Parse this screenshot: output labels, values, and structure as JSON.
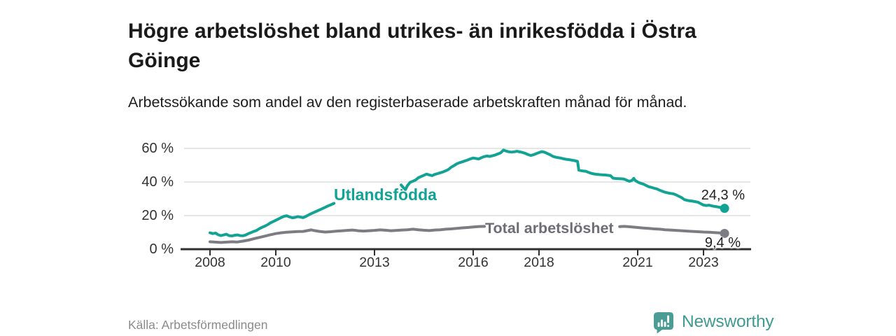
{
  "header": {
    "title": "Högre arbetslöshet bland utrikes- än inrikesfödda i Östra Göinge",
    "subtitle": "Arbetssökande som andel av den registerbaserade arbetskraften månad för månad."
  },
  "footer": {
    "source": "Källa: Arbetsförmedlingen",
    "brand_name": "Newsworthy",
    "brand_icon": "newsworthy-barchart-bubble-icon"
  },
  "colors": {
    "accent_teal": "#13a394",
    "line_gray": "#7c7c84",
    "gray_label": "#6d6d75",
    "axis": "#2f2f2f",
    "gridline": "#d8d8d8",
    "tick_text": "#333333",
    "brand_teal": "#4a9c94"
  },
  "chart_data": {
    "type": "line",
    "title": "Högre arbetslöshet bland utrikes- än inrikesfödda i Östra Göinge",
    "subtitle": "Arbetssökande som andel av den registerbaserade arbetskraften månad för månad.",
    "unit": "%",
    "grid": "horizontal-only",
    "legend_position": "inline-on-lines",
    "xlim": [
      2008,
      2023.64
    ],
    "ylim": [
      0,
      62
    ],
    "x_tick_years": [
      2008,
      2010,
      2013,
      2016,
      2018,
      2021,
      2023
    ],
    "x_tick_labels": [
      "2008",
      "2010",
      "2013",
      "2016",
      "2018",
      "2021",
      "2023"
    ],
    "y_ticks": [
      0,
      20,
      40,
      60
    ],
    "y_tick_labels": [
      "0 %",
      "20 %",
      "40 %",
      "60 %"
    ],
    "series": [
      {
        "name": "Utlandsfödda",
        "color": "#13a394",
        "end_value": 24.3,
        "end_label": "24,3 %",
        "segments": [
          [
            [
              2008.0,
              9.8
            ],
            [
              2008.08,
              9.3
            ],
            [
              2008.17,
              9.6
            ],
            [
              2008.25,
              8.6
            ],
            [
              2008.33,
              8.1
            ],
            [
              2008.42,
              8.5
            ],
            [
              2008.5,
              8.9
            ],
            [
              2008.58,
              8.1
            ],
            [
              2008.67,
              7.9
            ],
            [
              2008.75,
              8.3
            ],
            [
              2008.83,
              8.5
            ],
            [
              2008.92,
              8.1
            ],
            [
              2009.0,
              8.0
            ],
            [
              2009.08,
              8.4
            ],
            [
              2009.17,
              9.3
            ],
            [
              2009.25,
              9.9
            ],
            [
              2009.33,
              10.6
            ],
            [
              2009.42,
              11.2
            ],
            [
              2009.5,
              12.2
            ],
            [
              2009.58,
              13.0
            ],
            [
              2009.67,
              13.8
            ],
            [
              2009.75,
              14.6
            ],
            [
              2009.83,
              15.6
            ],
            [
              2009.92,
              16.4
            ],
            [
              2010.0,
              17.2
            ],
            [
              2010.08,
              18.0
            ],
            [
              2010.17,
              18.9
            ],
            [
              2010.25,
              19.6
            ],
            [
              2010.33,
              19.9
            ],
            [
              2010.42,
              19.2
            ],
            [
              2010.5,
              18.7
            ],
            [
              2010.58,
              18.9
            ],
            [
              2010.67,
              19.4
            ],
            [
              2010.75,
              19.1
            ],
            [
              2010.83,
              18.8
            ],
            [
              2010.92,
              19.6
            ],
            [
              2011.0,
              20.4
            ],
            [
              2011.08,
              21.2
            ],
            [
              2011.17,
              22.0
            ],
            [
              2011.25,
              22.7
            ],
            [
              2011.33,
              23.4
            ],
            [
              2011.42,
              24.2
            ],
            [
              2011.5,
              24.9
            ],
            [
              2011.58,
              25.7
            ],
            [
              2011.67,
              26.4
            ],
            [
              2011.77,
              27.3
            ]
          ],
          [
            [
              2013.81,
              38.2
            ],
            [
              2013.88,
              36.6
            ],
            [
              2013.94,
              35.5
            ],
            [
              2014.0,
              37.8
            ],
            [
              2014.08,
              39.8
            ],
            [
              2014.17,
              40.5
            ],
            [
              2014.25,
              41.2
            ],
            [
              2014.33,
              42.5
            ],
            [
              2014.42,
              43.3
            ],
            [
              2014.5,
              44.0
            ],
            [
              2014.58,
              44.7
            ],
            [
              2014.67,
              44.2
            ],
            [
              2014.75,
              43.8
            ],
            [
              2014.83,
              44.5
            ],
            [
              2014.92,
              45.0
            ],
            [
              2015.0,
              45.5
            ],
            [
              2015.08,
              46.0
            ],
            [
              2015.17,
              46.7
            ],
            [
              2015.25,
              47.5
            ],
            [
              2015.33,
              48.8
            ],
            [
              2015.42,
              49.8
            ],
            [
              2015.5,
              50.8
            ],
            [
              2015.58,
              51.5
            ],
            [
              2015.67,
              52.0
            ],
            [
              2015.75,
              52.6
            ],
            [
              2015.83,
              53.1
            ],
            [
              2015.92,
              53.8
            ],
            [
              2016.0,
              54.3
            ],
            [
              2016.08,
              54.0
            ],
            [
              2016.17,
              53.7
            ],
            [
              2016.25,
              54.5
            ],
            [
              2016.33,
              55.1
            ],
            [
              2016.42,
              55.5
            ],
            [
              2016.5,
              55.2
            ],
            [
              2016.58,
              55.6
            ],
            [
              2016.67,
              56.1
            ],
            [
              2016.75,
              56.7
            ],
            [
              2016.83,
              57.3
            ],
            [
              2016.92,
              59.0
            ],
            [
              2017.0,
              58.4
            ],
            [
              2017.08,
              58.0
            ],
            [
              2017.17,
              57.8
            ],
            [
              2017.25,
              58.0
            ],
            [
              2017.33,
              58.3
            ],
            [
              2017.42,
              57.9
            ],
            [
              2017.5,
              57.6
            ],
            [
              2017.58,
              57.1
            ],
            [
              2017.67,
              56.3
            ],
            [
              2017.75,
              55.8
            ],
            [
              2017.83,
              56.2
            ],
            [
              2017.92,
              56.9
            ],
            [
              2018.0,
              57.5
            ],
            [
              2018.08,
              58.1
            ],
            [
              2018.17,
              57.7
            ],
            [
              2018.25,
              57.0
            ],
            [
              2018.33,
              56.3
            ],
            [
              2018.42,
              55.3
            ],
            [
              2018.5,
              54.8
            ],
            [
              2018.58,
              54.5
            ],
            [
              2018.67,
              54.2
            ],
            [
              2018.75,
              53.8
            ],
            [
              2018.83,
              53.5
            ],
            [
              2018.92,
              53.3
            ],
            [
              2019.0,
              53.0
            ],
            [
              2019.08,
              52.7
            ],
            [
              2019.17,
              52.3
            ],
            [
              2019.21,
              47.0
            ],
            [
              2019.33,
              46.6
            ],
            [
              2019.42,
              46.4
            ],
            [
              2019.5,
              45.8
            ],
            [
              2019.58,
              45.2
            ],
            [
              2019.67,
              44.8
            ],
            [
              2019.75,
              44.6
            ],
            [
              2019.83,
              44.4
            ],
            [
              2019.92,
              44.3
            ],
            [
              2020.0,
              44.2
            ],
            [
              2020.08,
              44.0
            ],
            [
              2020.17,
              43.8
            ],
            [
              2020.25,
              42.3
            ],
            [
              2020.33,
              42.1
            ],
            [
              2020.42,
              42.0
            ],
            [
              2020.5,
              41.9
            ],
            [
              2020.58,
              41.8
            ],
            [
              2020.67,
              41.0
            ],
            [
              2020.75,
              40.4
            ],
            [
              2020.83,
              41.0
            ],
            [
              2020.88,
              42.2
            ],
            [
              2020.92,
              41.0
            ],
            [
              2021.0,
              40.0
            ],
            [
              2021.08,
              39.3
            ],
            [
              2021.17,
              38.8
            ],
            [
              2021.25,
              38.0
            ],
            [
              2021.33,
              37.2
            ],
            [
              2021.42,
              36.8
            ],
            [
              2021.5,
              36.3
            ],
            [
              2021.58,
              35.9
            ],
            [
              2021.67,
              35.1
            ],
            [
              2021.75,
              34.5
            ],
            [
              2021.83,
              33.9
            ],
            [
              2021.92,
              33.5
            ],
            [
              2022.0,
              33.2
            ],
            [
              2022.08,
              33.0
            ],
            [
              2022.17,
              32.3
            ],
            [
              2022.25,
              31.5
            ],
            [
              2022.33,
              30.8
            ],
            [
              2022.42,
              29.5
            ],
            [
              2022.5,
              29.1
            ],
            [
              2022.58,
              28.8
            ],
            [
              2022.67,
              28.6
            ],
            [
              2022.75,
              28.3
            ],
            [
              2022.83,
              28.0
            ],
            [
              2022.92,
              27.1
            ],
            [
              2023.0,
              26.3
            ],
            [
              2023.08,
              26.0
            ],
            [
              2023.17,
              26.2
            ],
            [
              2023.25,
              25.8
            ],
            [
              2023.33,
              25.5
            ],
            [
              2023.42,
              25.2
            ],
            [
              2023.5,
              24.9
            ],
            [
              2023.58,
              24.5
            ],
            [
              2023.64,
              24.3
            ]
          ]
        ]
      },
      {
        "name": "Total arbetslöshet",
        "color": "#7c7c84",
        "label_color": "#6d6d75",
        "end_value": 9.4,
        "end_label": "9,4 %",
        "segments": [
          [
            [
              2008.0,
              4.4
            ],
            [
              2008.17,
              4.2
            ],
            [
              2008.33,
              4.0
            ],
            [
              2008.5,
              4.2
            ],
            [
              2008.67,
              4.4
            ],
            [
              2008.83,
              4.3
            ],
            [
              2009.0,
              4.8
            ],
            [
              2009.17,
              5.4
            ],
            [
              2009.33,
              6.2
            ],
            [
              2009.5,
              7.0
            ],
            [
              2009.67,
              7.8
            ],
            [
              2009.83,
              8.6
            ],
            [
              2010.0,
              9.3
            ],
            [
              2010.17,
              9.8
            ],
            [
              2010.33,
              10.1
            ],
            [
              2010.5,
              10.3
            ],
            [
              2010.67,
              10.5
            ],
            [
              2010.83,
              10.6
            ],
            [
              2011.0,
              11.2
            ],
            [
              2011.08,
              11.5
            ],
            [
              2011.17,
              11.1
            ],
            [
              2011.33,
              10.6
            ],
            [
              2011.5,
              10.2
            ],
            [
              2011.67,
              10.4
            ],
            [
              2011.83,
              10.7
            ],
            [
              2012.0,
              10.9
            ],
            [
              2012.17,
              11.2
            ],
            [
              2012.33,
              11.4
            ],
            [
              2012.5,
              11.0
            ],
            [
              2012.67,
              10.8
            ],
            [
              2012.83,
              11.0
            ],
            [
              2013.0,
              11.2
            ],
            [
              2013.17,
              11.5
            ],
            [
              2013.33,
              11.3
            ],
            [
              2013.5,
              11.0
            ],
            [
              2013.67,
              11.2
            ],
            [
              2013.83,
              11.4
            ],
            [
              2014.0,
              11.6
            ],
            [
              2014.17,
              11.9
            ],
            [
              2014.33,
              11.6
            ],
            [
              2014.5,
              11.3
            ],
            [
              2014.67,
              11.1
            ],
            [
              2014.83,
              11.4
            ],
            [
              2015.0,
              11.6
            ],
            [
              2015.17,
              11.9
            ],
            [
              2015.33,
              12.1
            ],
            [
              2015.5,
              12.4
            ],
            [
              2015.67,
              12.7
            ],
            [
              2015.83,
              12.9
            ],
            [
              2016.0,
              13.2
            ],
            [
              2016.17,
              13.5
            ],
            [
              2016.34,
              13.6
            ]
          ],
          [
            [
              2020.45,
              13.4
            ],
            [
              2020.58,
              13.6
            ],
            [
              2020.67,
              13.5
            ],
            [
              2020.83,
              13.2
            ],
            [
              2021.0,
              12.9
            ],
            [
              2021.17,
              12.6
            ],
            [
              2021.33,
              12.4
            ],
            [
              2021.5,
              12.1
            ],
            [
              2021.67,
              11.9
            ],
            [
              2021.83,
              11.6
            ],
            [
              2022.0,
              11.4
            ],
            [
              2022.17,
              11.2
            ],
            [
              2022.33,
              11.0
            ],
            [
              2022.5,
              10.8
            ],
            [
              2022.67,
              10.6
            ],
            [
              2022.83,
              10.4
            ],
            [
              2023.0,
              10.2
            ],
            [
              2023.17,
              10.1
            ],
            [
              2023.33,
              9.9
            ],
            [
              2023.5,
              9.7
            ],
            [
              2023.64,
              9.4
            ]
          ]
        ]
      }
    ]
  }
}
